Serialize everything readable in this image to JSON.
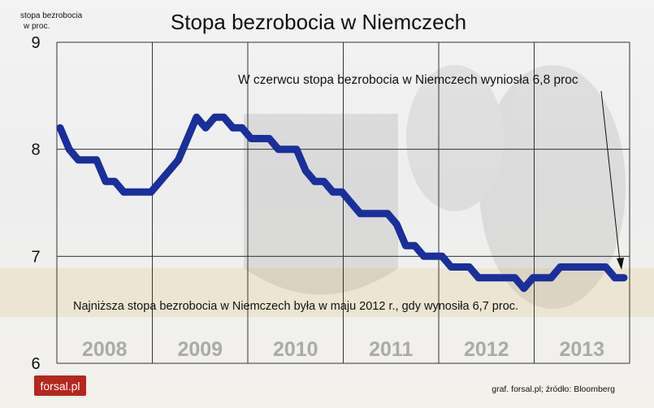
{
  "chart_data": {
    "type": "line",
    "title": "Stopa bezrobocia w Niemczech",
    "ylabel_line1": "stopa bezrobocia",
    "ylabel_line2": "w proc.",
    "ylim": [
      6,
      9
    ],
    "yticks": [
      "9",
      "8",
      "7",
      "6"
    ],
    "grid": true,
    "years": [
      "2008",
      "2009",
      "2010",
      "2011",
      "2012",
      "2013"
    ],
    "series": [
      {
        "color": "#1a2f9a",
        "values": [
          8.2,
          8.0,
          7.9,
          7.9,
          7.9,
          7.7,
          7.7,
          7.6,
          7.6,
          7.6,
          7.6,
          7.7,
          7.8,
          7.9,
          8.1,
          8.3,
          8.2,
          8.3,
          8.3,
          8.2,
          8.2,
          8.1,
          8.1,
          8.1,
          8.0,
          8.0,
          8.0,
          7.8,
          7.7,
          7.7,
          7.6,
          7.6,
          7.5,
          7.4,
          7.4,
          7.4,
          7.4,
          7.3,
          7.1,
          7.1,
          7.0,
          7.0,
          7.0,
          6.9,
          6.9,
          6.9,
          6.8,
          6.8,
          6.8,
          6.8,
          6.8,
          6.7,
          6.8,
          6.8,
          6.8,
          6.9,
          6.9,
          6.9,
          6.9,
          6.9,
          6.9,
          6.8,
          6.8
        ]
      }
    ],
    "annotations": {
      "june": "W czerwcu stopa bezrobocia w Niemczech wyniosła 6,8 proc",
      "lowest": "Najniższa stopa bezrobocia w Niemczech była w maju 2012 r., gdy wynosiła 6,7 proc."
    }
  },
  "footer": {
    "logo_text": "forsal.pl",
    "source": "graf. forsal.pl; źródło: Bloomberg"
  },
  "colors": {
    "line": "#1a2f9a",
    "year_label": "#aaaaaa",
    "logo_bg": "#b5261e"
  }
}
